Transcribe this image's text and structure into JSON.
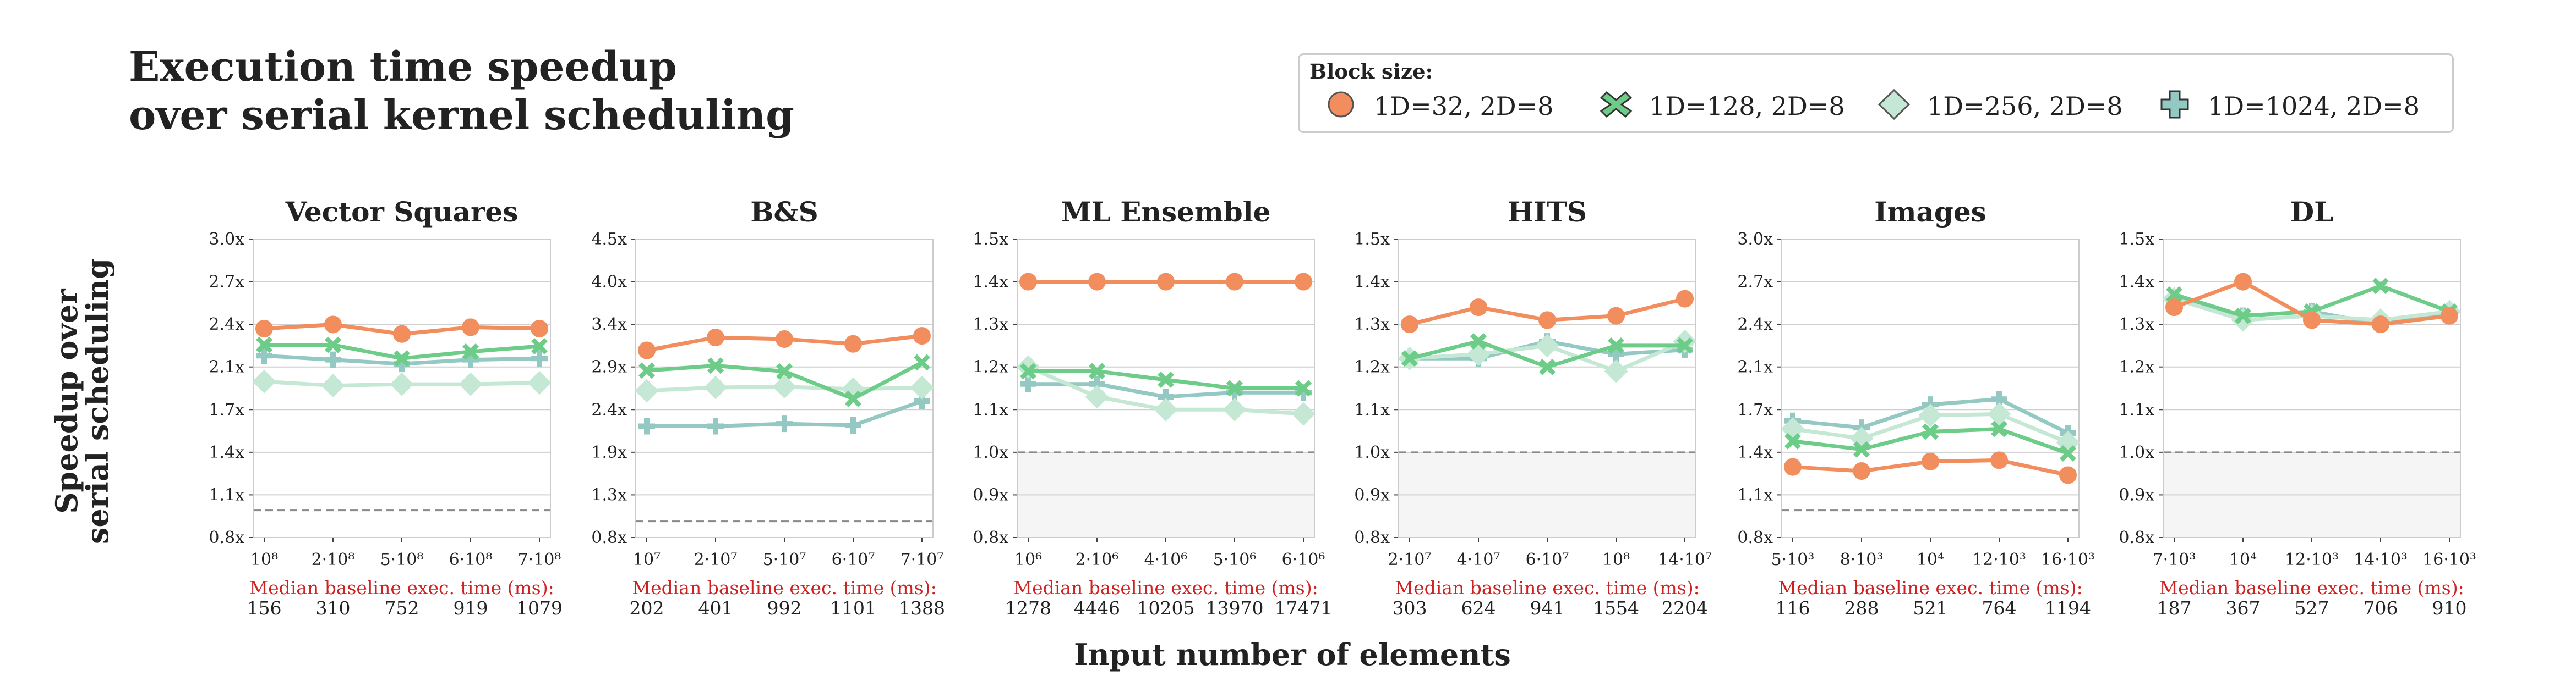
{
  "title_lines": [
    "Execution time speedup",
    "over serial kernel scheduling"
  ],
  "legend": {
    "title": "Block size:",
    "entries": [
      {
        "label": "1D=32, 2D=8",
        "color": "#f28e5e",
        "marker": "circle",
        "icon": "circle-marker-icon"
      },
      {
        "label": "1D=128, 2D=8",
        "color": "#6ccc88",
        "marker": "x",
        "icon": "x-marker-icon"
      },
      {
        "label": "1D=256, 2D=8",
        "color": "#c4e8d4",
        "marker": "diamond",
        "icon": "diamond-marker-icon"
      },
      {
        "label": "1D=1024, 2D=8",
        "color": "#93c9c2",
        "marker": "plus",
        "icon": "plus-marker-icon"
      }
    ]
  },
  "y_axis_title": [
    "Speedup over",
    "serial scheduling"
  ],
  "x_axis_title": "Input number of elements",
  "baseline_caption": "Median baseline exec. time (ms):",
  "chart_data": [
    {
      "type": "line",
      "title": "Vector Squares",
      "ylim": [
        0.8,
        3.0
      ],
      "yticks": [
        "0.8x",
        "1.1x",
        "1.4x",
        "1.7x",
        "2.1x",
        "2.4x",
        "2.7x",
        "3.0x"
      ],
      "categories": [
        "10⁸",
        "2·10⁸",
        "5·10⁸",
        "6·10⁸",
        "7·10⁸"
      ],
      "reference_line": 1.0,
      "baseline_ms": [
        "156",
        "310",
        "752",
        "919",
        "1079"
      ],
      "series": [
        {
          "name": "1D=32, 2D=8",
          "values": [
            2.34,
            2.37,
            2.3,
            2.35,
            2.34
          ]
        },
        {
          "name": "1D=128, 2D=8",
          "values": [
            2.22,
            2.22,
            2.12,
            2.17,
            2.21
          ]
        },
        {
          "name": "1D=256, 2D=8",
          "values": [
            1.95,
            1.92,
            1.93,
            1.93,
            1.94
          ]
        },
        {
          "name": "1D=1024, 2D=8",
          "values": [
            2.14,
            2.11,
            2.08,
            2.11,
            2.12
          ]
        }
      ]
    },
    {
      "type": "line",
      "title": "B&S",
      "ylim": [
        0.8,
        4.5
      ],
      "yticks": [
        "0.8x",
        "1.3x",
        "1.9x",
        "2.4x",
        "2.9x",
        "3.4x",
        "4.0x",
        "4.5x"
      ],
      "categories": [
        "10⁷",
        "2·10⁷",
        "5·10⁷",
        "6·10⁷",
        "7·10⁷"
      ],
      "reference_line": 1.0,
      "baseline_ms": [
        "202",
        "401",
        "992",
        "1101",
        "1388"
      ],
      "series": [
        {
          "name": "1D=32, 2D=8",
          "values": [
            3.12,
            3.28,
            3.26,
            3.2,
            3.3
          ]
        },
        {
          "name": "1D=128, 2D=8",
          "values": [
            2.87,
            2.93,
            2.86,
            2.52,
            2.97
          ]
        },
        {
          "name": "1D=256, 2D=8",
          "values": [
            2.62,
            2.66,
            2.67,
            2.64,
            2.66
          ]
        },
        {
          "name": "1D=1024, 2D=8",
          "values": [
            2.18,
            2.18,
            2.21,
            2.19,
            2.49
          ]
        }
      ]
    },
    {
      "type": "line",
      "title": "ML Ensemble",
      "ylim": [
        0.8,
        1.5
      ],
      "yticks": [
        "0.8x",
        "0.9x",
        "1.0x",
        "1.1x",
        "1.2x",
        "1.3x",
        "1.4x",
        "1.5x"
      ],
      "categories": [
        "10⁶",
        "2·10⁶",
        "4·10⁶",
        "5·10⁶",
        "6·10⁶"
      ],
      "reference_line": 1.0,
      "shade_below_reference": true,
      "baseline_ms": [
        "1278",
        "4446",
        "10205",
        "13970",
        "17471"
      ],
      "series": [
        {
          "name": "1D=32, 2D=8",
          "values": [
            1.4,
            1.4,
            1.4,
            1.4,
            1.4
          ]
        },
        {
          "name": "1D=128, 2D=8",
          "values": [
            1.19,
            1.19,
            1.17,
            1.15,
            1.15
          ]
        },
        {
          "name": "1D=256, 2D=8",
          "values": [
            1.2,
            1.13,
            1.1,
            1.1,
            1.09
          ]
        },
        {
          "name": "1D=1024, 2D=8",
          "values": [
            1.16,
            1.16,
            1.13,
            1.14,
            1.14
          ]
        }
      ]
    },
    {
      "type": "line",
      "title": "HITS",
      "ylim": [
        0.8,
        1.5
      ],
      "yticks": [
        "0.8x",
        "0.9x",
        "1.0x",
        "1.1x",
        "1.2x",
        "1.3x",
        "1.4x",
        "1.5x"
      ],
      "categories": [
        "2·10⁷",
        "4·10⁷",
        "6·10⁷",
        "10⁸",
        "14·10⁷"
      ],
      "reference_line": 1.0,
      "shade_below_reference": true,
      "baseline_ms": [
        "303",
        "624",
        "941",
        "1554",
        "2204"
      ],
      "series": [
        {
          "name": "1D=32, 2D=8",
          "values": [
            1.3,
            1.34,
            1.31,
            1.32,
            1.36
          ]
        },
        {
          "name": "1D=128, 2D=8",
          "values": [
            1.22,
            1.26,
            1.2,
            1.25,
            1.25
          ]
        },
        {
          "name": "1D=256, 2D=8",
          "values": [
            1.22,
            1.23,
            1.25,
            1.19,
            1.26
          ]
        },
        {
          "name": "1D=1024, 2D=8",
          "values": [
            1.22,
            1.22,
            1.26,
            1.23,
            1.24
          ]
        }
      ]
    },
    {
      "type": "line",
      "title": "Images",
      "ylim": [
        0.8,
        3.0
      ],
      "yticks": [
        "0.8x",
        "1.1x",
        "1.4x",
        "1.7x",
        "2.1x",
        "2.4x",
        "2.7x",
        "3.0x"
      ],
      "categories": [
        "5·10³",
        "8·10³",
        "10⁴",
        "12·10³",
        "16·10³"
      ],
      "reference_line": 1.0,
      "baseline_ms": [
        "116",
        "288",
        "521",
        "764",
        "1194"
      ],
      "series": [
        {
          "name": "1D=32, 2D=8",
          "values": [
            1.32,
            1.29,
            1.36,
            1.37,
            1.26
          ]
        },
        {
          "name": "1D=128, 2D=8",
          "values": [
            1.51,
            1.45,
            1.58,
            1.6,
            1.42
          ]
        },
        {
          "name": "1D=256, 2D=8",
          "values": [
            1.6,
            1.53,
            1.7,
            1.71,
            1.5
          ]
        },
        {
          "name": "1D=1024, 2D=8",
          "values": [
            1.66,
            1.61,
            1.78,
            1.82,
            1.57
          ]
        }
      ]
    },
    {
      "type": "line",
      "title": "DL",
      "ylim": [
        0.8,
        1.5
      ],
      "yticks": [
        "0.8x",
        "0.9x",
        "1.0x",
        "1.1x",
        "1.2x",
        "1.3x",
        "1.4x",
        "1.5x"
      ],
      "categories": [
        "7·10³",
        "10⁴",
        "12·10³",
        "14·10³",
        "16·10³"
      ],
      "reference_line": 1.0,
      "shade_below_reference": true,
      "baseline_ms": [
        "187",
        "367",
        "527",
        "706",
        "910"
      ],
      "series": [
        {
          "name": "1D=32, 2D=8",
          "values": [
            1.34,
            1.4,
            1.31,
            1.3,
            1.32
          ]
        },
        {
          "name": "1D=128, 2D=8",
          "values": [
            1.37,
            1.32,
            1.33,
            1.39,
            1.33
          ]
        },
        {
          "name": "1D=256, 2D=8",
          "values": [
            1.36,
            1.31,
            1.32,
            1.31,
            1.33
          ]
        },
        {
          "name": "1D=1024, 2D=8",
          "values": [
            1.36,
            1.32,
            1.33,
            1.3,
            1.33
          ]
        }
      ]
    }
  ]
}
